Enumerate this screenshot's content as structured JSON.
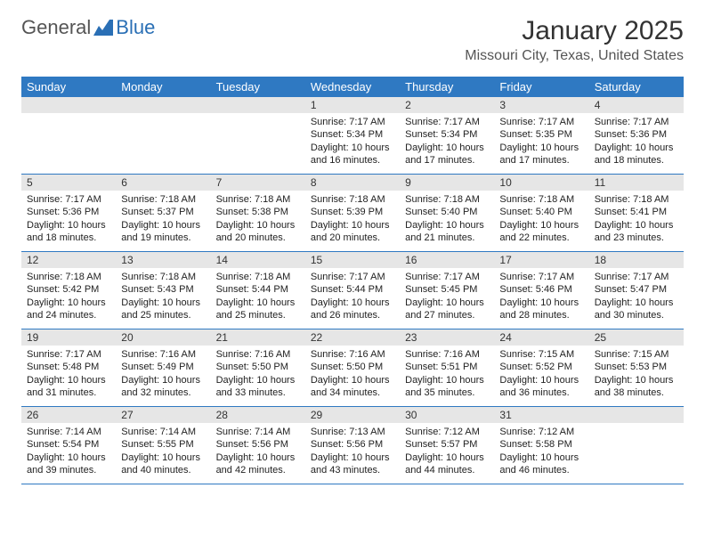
{
  "logo": {
    "text1": "General",
    "text2": "Blue"
  },
  "title": "January 2025",
  "location": "Missouri City, Texas, United States",
  "header_bg": "#2f79c2",
  "day_names": [
    "Sunday",
    "Monday",
    "Tuesday",
    "Wednesday",
    "Thursday",
    "Friday",
    "Saturday"
  ],
  "weeks": [
    [
      {
        "n": ""
      },
      {
        "n": ""
      },
      {
        "n": ""
      },
      {
        "n": "1",
        "sr": "Sunrise: 7:17 AM",
        "ss": "Sunset: 5:34 PM",
        "d1": "Daylight: 10 hours",
        "d2": "and 16 minutes."
      },
      {
        "n": "2",
        "sr": "Sunrise: 7:17 AM",
        "ss": "Sunset: 5:34 PM",
        "d1": "Daylight: 10 hours",
        "d2": "and 17 minutes."
      },
      {
        "n": "3",
        "sr": "Sunrise: 7:17 AM",
        "ss": "Sunset: 5:35 PM",
        "d1": "Daylight: 10 hours",
        "d2": "and 17 minutes."
      },
      {
        "n": "4",
        "sr": "Sunrise: 7:17 AM",
        "ss": "Sunset: 5:36 PM",
        "d1": "Daylight: 10 hours",
        "d2": "and 18 minutes."
      }
    ],
    [
      {
        "n": "5",
        "sr": "Sunrise: 7:17 AM",
        "ss": "Sunset: 5:36 PM",
        "d1": "Daylight: 10 hours",
        "d2": "and 18 minutes."
      },
      {
        "n": "6",
        "sr": "Sunrise: 7:18 AM",
        "ss": "Sunset: 5:37 PM",
        "d1": "Daylight: 10 hours",
        "d2": "and 19 minutes."
      },
      {
        "n": "7",
        "sr": "Sunrise: 7:18 AM",
        "ss": "Sunset: 5:38 PM",
        "d1": "Daylight: 10 hours",
        "d2": "and 20 minutes."
      },
      {
        "n": "8",
        "sr": "Sunrise: 7:18 AM",
        "ss": "Sunset: 5:39 PM",
        "d1": "Daylight: 10 hours",
        "d2": "and 20 minutes."
      },
      {
        "n": "9",
        "sr": "Sunrise: 7:18 AM",
        "ss": "Sunset: 5:40 PM",
        "d1": "Daylight: 10 hours",
        "d2": "and 21 minutes."
      },
      {
        "n": "10",
        "sr": "Sunrise: 7:18 AM",
        "ss": "Sunset: 5:40 PM",
        "d1": "Daylight: 10 hours",
        "d2": "and 22 minutes."
      },
      {
        "n": "11",
        "sr": "Sunrise: 7:18 AM",
        "ss": "Sunset: 5:41 PM",
        "d1": "Daylight: 10 hours",
        "d2": "and 23 minutes."
      }
    ],
    [
      {
        "n": "12",
        "sr": "Sunrise: 7:18 AM",
        "ss": "Sunset: 5:42 PM",
        "d1": "Daylight: 10 hours",
        "d2": "and 24 minutes."
      },
      {
        "n": "13",
        "sr": "Sunrise: 7:18 AM",
        "ss": "Sunset: 5:43 PM",
        "d1": "Daylight: 10 hours",
        "d2": "and 25 minutes."
      },
      {
        "n": "14",
        "sr": "Sunrise: 7:18 AM",
        "ss": "Sunset: 5:44 PM",
        "d1": "Daylight: 10 hours",
        "d2": "and 25 minutes."
      },
      {
        "n": "15",
        "sr": "Sunrise: 7:17 AM",
        "ss": "Sunset: 5:44 PM",
        "d1": "Daylight: 10 hours",
        "d2": "and 26 minutes."
      },
      {
        "n": "16",
        "sr": "Sunrise: 7:17 AM",
        "ss": "Sunset: 5:45 PM",
        "d1": "Daylight: 10 hours",
        "d2": "and 27 minutes."
      },
      {
        "n": "17",
        "sr": "Sunrise: 7:17 AM",
        "ss": "Sunset: 5:46 PM",
        "d1": "Daylight: 10 hours",
        "d2": "and 28 minutes."
      },
      {
        "n": "18",
        "sr": "Sunrise: 7:17 AM",
        "ss": "Sunset: 5:47 PM",
        "d1": "Daylight: 10 hours",
        "d2": "and 30 minutes."
      }
    ],
    [
      {
        "n": "19",
        "sr": "Sunrise: 7:17 AM",
        "ss": "Sunset: 5:48 PM",
        "d1": "Daylight: 10 hours",
        "d2": "and 31 minutes."
      },
      {
        "n": "20",
        "sr": "Sunrise: 7:16 AM",
        "ss": "Sunset: 5:49 PM",
        "d1": "Daylight: 10 hours",
        "d2": "and 32 minutes."
      },
      {
        "n": "21",
        "sr": "Sunrise: 7:16 AM",
        "ss": "Sunset: 5:50 PM",
        "d1": "Daylight: 10 hours",
        "d2": "and 33 minutes."
      },
      {
        "n": "22",
        "sr": "Sunrise: 7:16 AM",
        "ss": "Sunset: 5:50 PM",
        "d1": "Daylight: 10 hours",
        "d2": "and 34 minutes."
      },
      {
        "n": "23",
        "sr": "Sunrise: 7:16 AM",
        "ss": "Sunset: 5:51 PM",
        "d1": "Daylight: 10 hours",
        "d2": "and 35 minutes."
      },
      {
        "n": "24",
        "sr": "Sunrise: 7:15 AM",
        "ss": "Sunset: 5:52 PM",
        "d1": "Daylight: 10 hours",
        "d2": "and 36 minutes."
      },
      {
        "n": "25",
        "sr": "Sunrise: 7:15 AM",
        "ss": "Sunset: 5:53 PM",
        "d1": "Daylight: 10 hours",
        "d2": "and 38 minutes."
      }
    ],
    [
      {
        "n": "26",
        "sr": "Sunrise: 7:14 AM",
        "ss": "Sunset: 5:54 PM",
        "d1": "Daylight: 10 hours",
        "d2": "and 39 minutes."
      },
      {
        "n": "27",
        "sr": "Sunrise: 7:14 AM",
        "ss": "Sunset: 5:55 PM",
        "d1": "Daylight: 10 hours",
        "d2": "and 40 minutes."
      },
      {
        "n": "28",
        "sr": "Sunrise: 7:14 AM",
        "ss": "Sunset: 5:56 PM",
        "d1": "Daylight: 10 hours",
        "d2": "and 42 minutes."
      },
      {
        "n": "29",
        "sr": "Sunrise: 7:13 AM",
        "ss": "Sunset: 5:56 PM",
        "d1": "Daylight: 10 hours",
        "d2": "and 43 minutes."
      },
      {
        "n": "30",
        "sr": "Sunrise: 7:12 AM",
        "ss": "Sunset: 5:57 PM",
        "d1": "Daylight: 10 hours",
        "d2": "and 44 minutes."
      },
      {
        "n": "31",
        "sr": "Sunrise: 7:12 AM",
        "ss": "Sunset: 5:58 PM",
        "d1": "Daylight: 10 hours",
        "d2": "and 46 minutes."
      },
      {
        "n": ""
      }
    ]
  ]
}
